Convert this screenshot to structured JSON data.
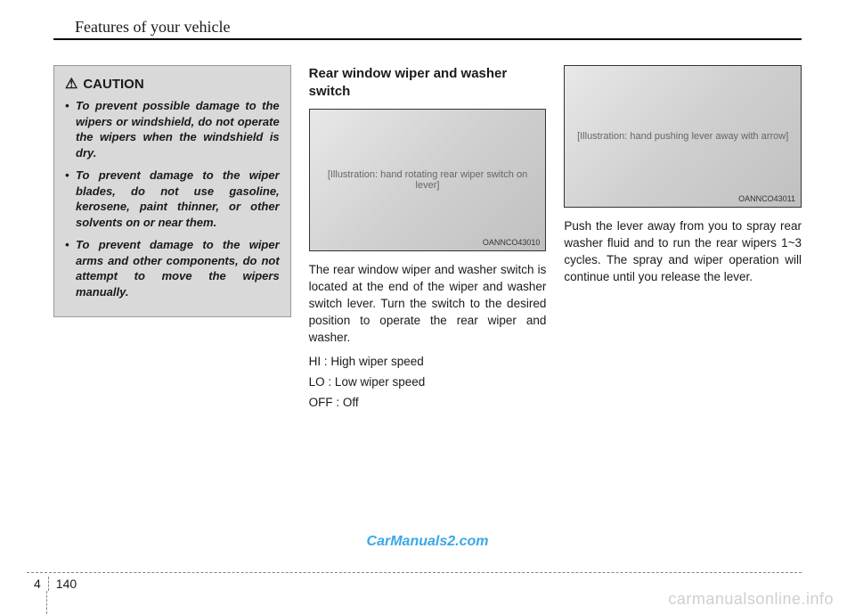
{
  "header": {
    "title": "Features of your vehicle"
  },
  "caution": {
    "label": "CAUTION",
    "items": [
      "To prevent possible damage to the wipers or windshield, do not operate the wipers when the windshield is dry.",
      "To prevent damage to the wiper blades, do not use gasoline, kerosene, paint thinner, or other solvents on or near them.",
      "To prevent damage to the wiper arms and other components, do not attempt to move the wipers manually."
    ]
  },
  "middle": {
    "heading": "Rear window wiper and washer switch",
    "figure_caption": "OANNCO43010",
    "figure_alt": "[Illustration: hand rotating rear wiper switch on lever]",
    "body": "The rear window wiper and washer switch is located at the end of the wiper and washer switch lever. Turn the switch to the desired position to operate the rear wiper and washer.",
    "settings": {
      "hi": "HI : High wiper speed",
      "lo": "LO : Low wiper speed",
      "off": "OFF : Off"
    }
  },
  "right": {
    "figure_caption": "OANNCO43011",
    "figure_alt": "[Illustration: hand pushing lever away with arrow]",
    "body": "Push the lever away from you to spray rear washer fluid and to run the rear wipers 1~3 cycles. The spray and wiper operation will continue until you release the lever."
  },
  "watermarks": {
    "center": "CarManuals2.com",
    "bottom": "carmanualsonline.info"
  },
  "footer": {
    "chapter": "4",
    "page": "140"
  },
  "colors": {
    "caution_bg": "#d9d9d9",
    "link_blue": "#3aa7e8",
    "watermark_gray": "#cfcfcf"
  }
}
